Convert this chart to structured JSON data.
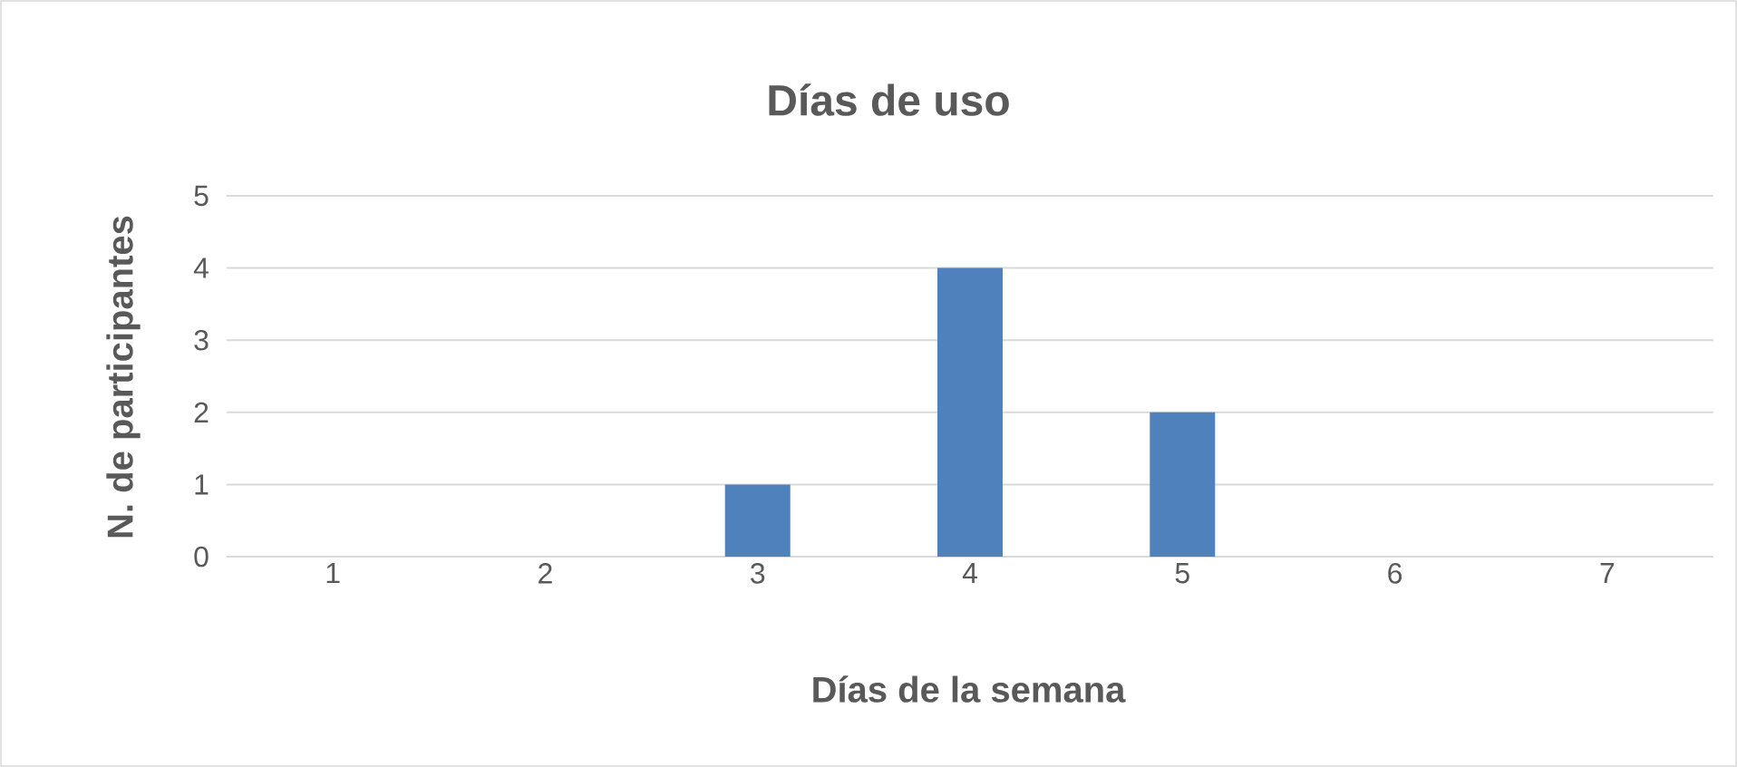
{
  "chart_data": {
    "type": "bar",
    "title": "Días de uso",
    "xlabel": "Días de la semana",
    "ylabel": "N. de participantes",
    "categories": [
      "1",
      "2",
      "3",
      "4",
      "5",
      "6",
      "7"
    ],
    "values": [
      0,
      0,
      1,
      4,
      2,
      0,
      0
    ],
    "color": "#4f81bd",
    "ylim": [
      0,
      5
    ],
    "yticks": [
      0,
      1,
      2,
      3,
      4,
      5
    ],
    "grid": "y"
  }
}
